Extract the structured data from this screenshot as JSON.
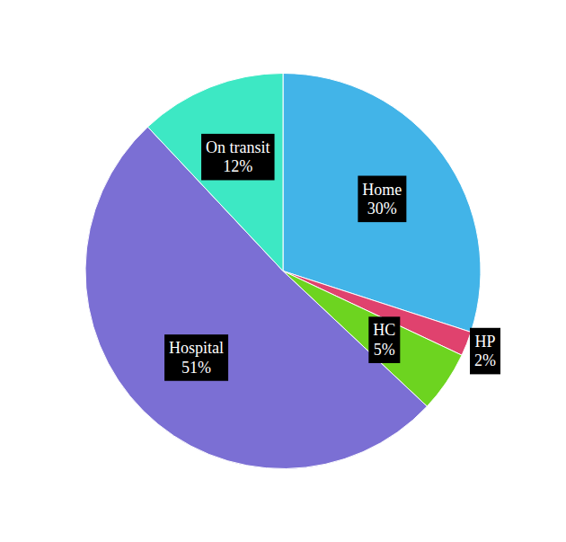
{
  "chart_data": {
    "type": "pie",
    "categories": [
      "Home",
      "HP",
      "HC",
      "Hospital",
      "On transit"
    ],
    "values": [
      30,
      2,
      5,
      51,
      12
    ],
    "value_labels": [
      "30%",
      "2%",
      "5%",
      "51%",
      "12%"
    ],
    "colors": [
      "#42b4e8",
      "#e0426e",
      "#6dd420",
      "#7b6fd4",
      "#3de8c4"
    ],
    "data_labels": true
  }
}
